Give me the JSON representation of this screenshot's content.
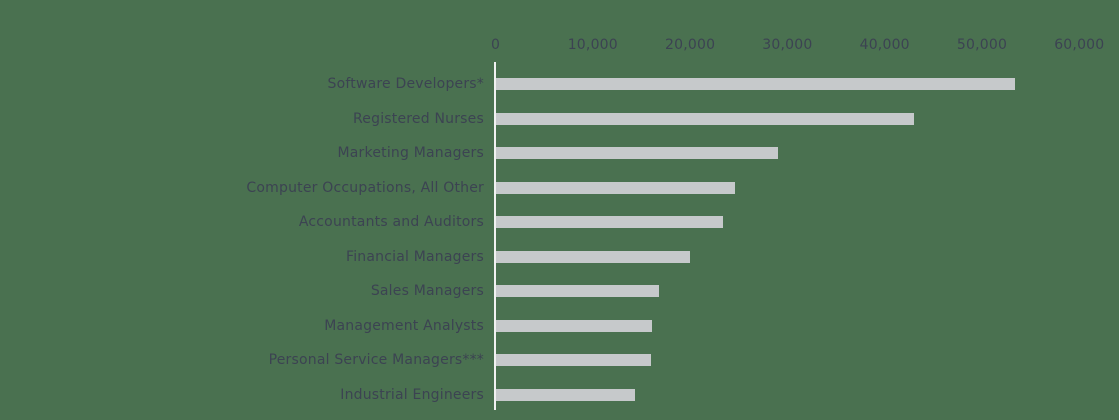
{
  "colors": {
    "background": "#4a7150",
    "bar": "#c6c9cb",
    "text": "#3c4352",
    "axis_line": "#f1f2f2"
  },
  "chart_data": {
    "type": "bar",
    "orientation": "horizontal",
    "title": "",
    "xlabel": "",
    "ylabel": "",
    "categories": [
      "Software Developers*",
      "Registered Nurses",
      "Marketing Managers",
      "Computer Occupations, All Other",
      "Accountants and Auditors",
      "Financial Managers",
      "Sales Managers",
      "Management Analysts",
      "Personal Service Managers***",
      "Industrial Engineers"
    ],
    "values": [
      53300,
      43000,
      29000,
      24600,
      23300,
      19900,
      16800,
      16000,
      15900,
      14300
    ],
    "xlim": [
      0,
      60000
    ],
    "x_tick_values": [
      0,
      10000,
      20000,
      30000,
      40000,
      50000,
      60000
    ],
    "x_ticks": [
      "0",
      "10,000",
      "20,000",
      "30,000",
      "40,000",
      "50,000",
      "60,000"
    ],
    "grid": false,
    "legend": false,
    "axis_ticks_position": "top"
  }
}
